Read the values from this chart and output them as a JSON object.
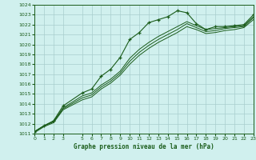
{
  "title": "Graphe pression niveau de la mer (hPa)",
  "bg_color": "#d0f0ee",
  "grid_color": "#a8cece",
  "line_color": "#1a5c1a",
  "xlim": [
    0,
    23
  ],
  "ylim": [
    1011,
    1024
  ],
  "xtick_vals": [
    0,
    1,
    2,
    3,
    5,
    6,
    7,
    8,
    9,
    10,
    11,
    12,
    13,
    14,
    15,
    16,
    17,
    18,
    19,
    20,
    21,
    22,
    23
  ],
  "ytick_vals": [
    1011,
    1012,
    1013,
    1014,
    1015,
    1016,
    1017,
    1018,
    1019,
    1020,
    1021,
    1022,
    1023,
    1024
  ],
  "series_main": {
    "x": [
      0,
      1,
      2,
      3,
      5,
      6,
      7,
      8,
      9,
      10,
      11,
      12,
      13,
      14,
      15,
      16,
      17,
      18,
      19,
      20,
      21,
      22,
      23
    ],
    "y": [
      1011.2,
      1011.8,
      1012.3,
      1013.8,
      1015.1,
      1015.5,
      1016.8,
      1017.5,
      1018.7,
      1020.5,
      1021.2,
      1022.2,
      1022.5,
      1022.8,
      1023.4,
      1023.2,
      1022.1,
      1021.5,
      1021.8,
      1021.8,
      1021.9,
      1022.0,
      1023.0
    ]
  },
  "series_smooth": [
    {
      "x": [
        0,
        1,
        2,
        3,
        5,
        6,
        7,
        8,
        9,
        10,
        11,
        12,
        13,
        14,
        15,
        16,
        17,
        18,
        19,
        20,
        21,
        22,
        23
      ],
      "y": [
        1011.2,
        1011.8,
        1012.2,
        1013.6,
        1014.8,
        1015.1,
        1015.9,
        1016.5,
        1017.3,
        1018.6,
        1019.5,
        1020.2,
        1020.8,
        1021.3,
        1021.8,
        1022.3,
        1021.9,
        1021.5,
        1021.6,
        1021.7,
        1021.8,
        1021.9,
        1022.8
      ]
    },
    {
      "x": [
        0,
        1,
        2,
        3,
        5,
        6,
        7,
        8,
        9,
        10,
        11,
        12,
        13,
        14,
        15,
        16,
        17,
        18,
        19,
        20,
        21,
        22,
        23
      ],
      "y": [
        1011.2,
        1011.8,
        1012.2,
        1013.5,
        1014.6,
        1014.9,
        1015.7,
        1016.3,
        1017.1,
        1018.3,
        1019.2,
        1019.9,
        1020.5,
        1021.0,
        1021.5,
        1022.1,
        1021.7,
        1021.3,
        1021.4,
        1021.6,
        1021.7,
        1021.8,
        1022.7
      ]
    },
    {
      "x": [
        0,
        1,
        2,
        3,
        5,
        6,
        7,
        8,
        9,
        10,
        11,
        12,
        13,
        14,
        15,
        16,
        17,
        18,
        19,
        20,
        21,
        22,
        23
      ],
      "y": [
        1011.1,
        1011.7,
        1012.1,
        1013.4,
        1014.4,
        1014.7,
        1015.5,
        1016.1,
        1016.9,
        1018.0,
        1018.9,
        1019.6,
        1020.2,
        1020.7,
        1021.2,
        1021.8,
        1021.5,
        1021.1,
        1021.2,
        1021.4,
        1021.5,
        1021.7,
        1022.5
      ]
    }
  ]
}
